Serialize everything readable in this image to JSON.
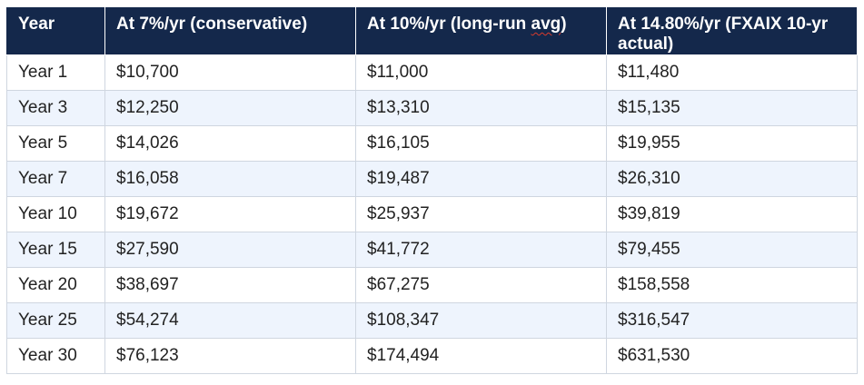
{
  "table": {
    "headers": [
      "Year",
      "At 7%/yr (conservative)",
      "At 10%/yr (long-run avg)",
      "At 14.80%/yr (FXAIX 10-yr actual)"
    ],
    "rows": [
      [
        "Year 1",
        "$10,700",
        "$11,000",
        "$11,480"
      ],
      [
        "Year 3",
        "$12,250",
        "$13,310",
        "$15,135"
      ],
      [
        "Year 5",
        "$14,026",
        "$16,105",
        "$19,955"
      ],
      [
        "Year 7",
        "$16,058",
        "$19,487",
        "$26,310"
      ],
      [
        "Year 10",
        "$19,672",
        "$25,937",
        "$39,819"
      ],
      [
        "Year 15",
        "$27,590",
        "$41,772",
        "$79,455"
      ],
      [
        "Year 20",
        "$38,697",
        "$67,275",
        "$158,558"
      ],
      [
        "Year 25",
        "$54,274",
        "$108,347",
        "$316,547"
      ],
      [
        "Year 30",
        "$76,123",
        "$174,494",
        "$631,530"
      ]
    ]
  },
  "colors": {
    "header_bg": "#14284b",
    "header_text": "#ffffff",
    "stripe_bg": "#eef4fd",
    "border": "#cfd6e0",
    "spellcheck_squiggle": "#d83a2c"
  }
}
